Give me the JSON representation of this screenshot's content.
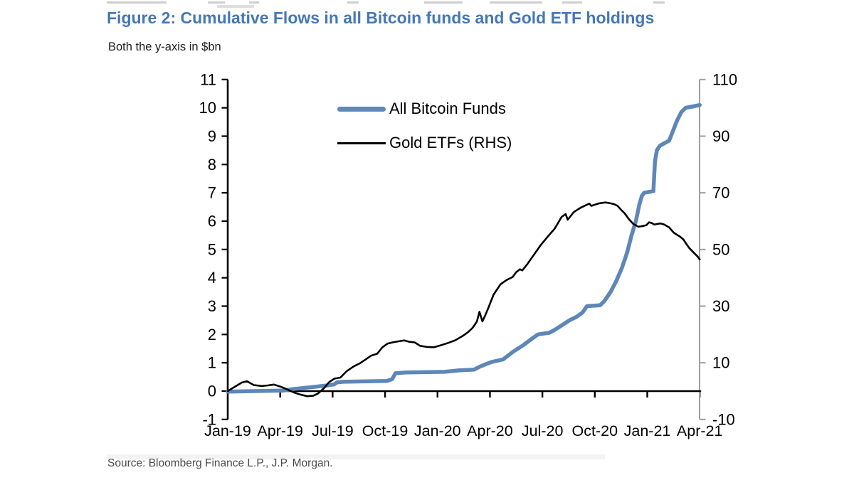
{
  "page": {
    "title": "Figure 2: Cumulative Flows in all Bitcoin funds and Gold ETF holdings",
    "subtitle": "Both the y-axis in $bn",
    "source": "Source: Bloomberg Finance L.P., J.P. Morgan."
  },
  "legend": {
    "items": [
      {
        "label": "All Bitcoin Funds",
        "color": "#5e87b8"
      },
      {
        "label": "Gold ETFs (RHS)",
        "color": "#000000"
      }
    ]
  },
  "chart_data": {
    "type": "line",
    "title": "Figure 2: Cumulative Flows in all Bitcoin funds and Gold ETF holdings",
    "subtitle": "Both the y-axis in $bn",
    "units": "$bn",
    "x_tick_labels": [
      "Jan-19",
      "Apr-19",
      "Jul-19",
      "Oct-19",
      "Jan-20",
      "Apr-20",
      "Jul-20",
      "Oct-20",
      "Jan-21",
      "Apr-21"
    ],
    "x_range_months": [
      0,
      27
    ],
    "left_axis": {
      "ticks": [
        11,
        10,
        9,
        8,
        7,
        6,
        5,
        4,
        3,
        2,
        1,
        0,
        -1
      ],
      "range": [
        -1,
        11
      ],
      "color": "#000000"
    },
    "right_axis": {
      "ticks": [
        110,
        90,
        70,
        50,
        30,
        10,
        -10
      ],
      "range": [
        -10,
        110
      ],
      "color": "#9e9e9e"
    },
    "grid": false,
    "legend_position": "top-inside",
    "series": [
      {
        "name": "All Bitcoin Funds",
        "axis": "left",
        "color": "#5e87b8",
        "width": 5.5,
        "points": [
          [
            0,
            -0.02
          ],
          [
            3.2,
            0.02
          ],
          [
            3.7,
            0.07
          ],
          [
            4.5,
            0.12
          ],
          [
            5.1,
            0.16
          ],
          [
            5.7,
            0.2
          ],
          [
            6.1,
            0.24
          ],
          [
            6.25,
            0.31
          ],
          [
            6.6,
            0.33
          ],
          [
            9.1,
            0.36
          ],
          [
            9.4,
            0.42
          ],
          [
            9.6,
            0.63
          ],
          [
            10.2,
            0.66
          ],
          [
            12.4,
            0.68
          ],
          [
            13.2,
            0.73
          ],
          [
            14.1,
            0.76
          ],
          [
            14.45,
            0.87
          ],
          [
            14.8,
            0.96
          ],
          [
            15.1,
            1.03
          ],
          [
            15.75,
            1.12
          ],
          [
            16.3,
            1.38
          ],
          [
            16.9,
            1.62
          ],
          [
            17.4,
            1.85
          ],
          [
            17.75,
            2.0
          ],
          [
            18.4,
            2.06
          ],
          [
            18.75,
            2.18
          ],
          [
            19.15,
            2.34
          ],
          [
            19.55,
            2.5
          ],
          [
            19.95,
            2.62
          ],
          [
            20.3,
            2.78
          ],
          [
            20.55,
            3.0
          ],
          [
            21.3,
            3.03
          ],
          [
            21.55,
            3.18
          ],
          [
            21.9,
            3.5
          ],
          [
            22.2,
            3.85
          ],
          [
            22.55,
            4.35
          ],
          [
            22.85,
            4.9
          ],
          [
            23.1,
            5.5
          ],
          [
            23.35,
            6.0
          ],
          [
            23.55,
            6.6
          ],
          [
            23.7,
            6.9
          ],
          [
            23.82,
            7.0
          ],
          [
            24.35,
            7.06
          ],
          [
            24.44,
            8.1
          ],
          [
            24.55,
            8.5
          ],
          [
            24.72,
            8.66
          ],
          [
            24.95,
            8.74
          ],
          [
            25.25,
            8.84
          ],
          [
            25.45,
            9.15
          ],
          [
            25.7,
            9.55
          ],
          [
            25.95,
            9.85
          ],
          [
            26.2,
            10.0
          ],
          [
            26.55,
            10.04
          ],
          [
            27,
            10.1
          ]
        ]
      },
      {
        "name": "Gold ETFs (RHS)",
        "axis": "right",
        "color": "#000000",
        "width": 2.6,
        "points": [
          [
            0,
            0
          ],
          [
            0.4,
            1.5
          ],
          [
            0.8,
            3.0
          ],
          [
            1.1,
            3.5
          ],
          [
            1.5,
            2.1
          ],
          [
            1.95,
            1.8
          ],
          [
            2.3,
            2.0
          ],
          [
            2.65,
            2.3
          ],
          [
            3.05,
            1.5
          ],
          [
            3.4,
            0.6
          ],
          [
            3.8,
            -0.5
          ],
          [
            4.15,
            -1.2
          ],
          [
            4.55,
            -1.8
          ],
          [
            4.9,
            -1.6
          ],
          [
            5.15,
            -0.9
          ],
          [
            5.5,
            1.0
          ],
          [
            5.8,
            3.2
          ],
          [
            6.1,
            4.4
          ],
          [
            6.45,
            4.8
          ],
          [
            6.8,
            7.0
          ],
          [
            7.2,
            8.7
          ],
          [
            7.55,
            9.8
          ],
          [
            7.85,
            11.0
          ],
          [
            8.2,
            12.5
          ],
          [
            8.55,
            13.2
          ],
          [
            8.85,
            15.5
          ],
          [
            9.15,
            16.8
          ],
          [
            9.5,
            17.3
          ],
          [
            9.8,
            17.6
          ],
          [
            10.1,
            17.9
          ],
          [
            10.4,
            17.4
          ],
          [
            10.7,
            17.2
          ],
          [
            11.0,
            16.0
          ],
          [
            11.4,
            15.6
          ],
          [
            11.8,
            15.5
          ],
          [
            12.15,
            16.1
          ],
          [
            12.6,
            17.0
          ],
          [
            13.0,
            17.9
          ],
          [
            13.45,
            19.5
          ],
          [
            13.75,
            20.8
          ],
          [
            14.0,
            22.3
          ],
          [
            14.25,
            24.5
          ],
          [
            14.4,
            28.0
          ],
          [
            14.57,
            24.6
          ],
          [
            14.75,
            27.0
          ],
          [
            14.95,
            30.0
          ],
          [
            15.2,
            34.0
          ],
          [
            15.6,
            37.7
          ],
          [
            15.95,
            39.2
          ],
          [
            16.3,
            40.3
          ],
          [
            16.5,
            42.0
          ],
          [
            16.72,
            43.0
          ],
          [
            16.85,
            42.6
          ],
          [
            17.1,
            44.5
          ],
          [
            17.5,
            48.0
          ],
          [
            17.9,
            51.5
          ],
          [
            18.3,
            54.5
          ],
          [
            18.7,
            57.3
          ],
          [
            19.1,
            61.5
          ],
          [
            19.33,
            62.5
          ],
          [
            19.45,
            60.5
          ],
          [
            19.8,
            63.2
          ],
          [
            20.2,
            64.8
          ],
          [
            20.45,
            65.5
          ],
          [
            20.68,
            66.2
          ],
          [
            20.8,
            65.4
          ],
          [
            21.0,
            65.8
          ],
          [
            21.25,
            66.3
          ],
          [
            21.6,
            66.6
          ],
          [
            21.9,
            66.3
          ],
          [
            22.1,
            66.0
          ],
          [
            22.3,
            65.4
          ],
          [
            22.5,
            64.0
          ],
          [
            22.7,
            62.8
          ],
          [
            22.95,
            60.7
          ],
          [
            23.2,
            59.0
          ],
          [
            23.5,
            58.0
          ],
          [
            23.75,
            58.3
          ],
          [
            23.95,
            58.6
          ],
          [
            24.1,
            59.6
          ],
          [
            24.27,
            59.3
          ],
          [
            24.4,
            58.8
          ],
          [
            24.56,
            59.0
          ],
          [
            24.76,
            59.2
          ],
          [
            24.97,
            58.8
          ],
          [
            25.25,
            57.8
          ],
          [
            25.5,
            56.0
          ],
          [
            25.67,
            55.3
          ],
          [
            25.88,
            54.5
          ],
          [
            26.07,
            53.5
          ],
          [
            26.23,
            52.0
          ],
          [
            26.4,
            50.5
          ],
          [
            26.56,
            49.5
          ],
          [
            26.72,
            48.5
          ],
          [
            26.88,
            47.5
          ],
          [
            27,
            46.5
          ]
        ]
      }
    ]
  }
}
